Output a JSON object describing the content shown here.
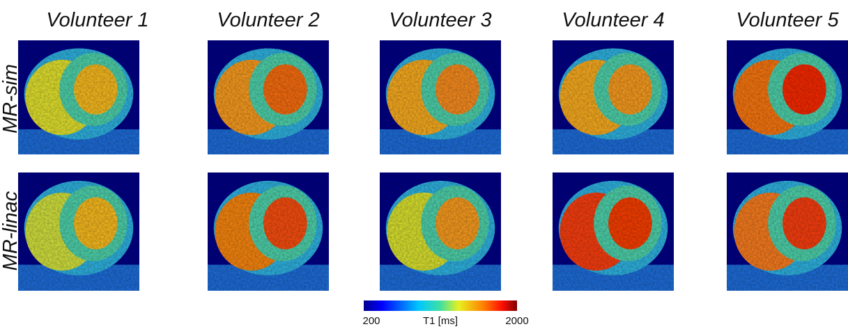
{
  "columns": [
    "Volunteer 1",
    "Volunteer 2",
    "Volunteer 3",
    "Volunteer 4",
    "Volunteer 5"
  ],
  "rows": [
    "MR-sim",
    "MR-linac"
  ],
  "colorbar": {
    "label": "T1 [ms]",
    "min": 200,
    "max": 2000
  }
}
